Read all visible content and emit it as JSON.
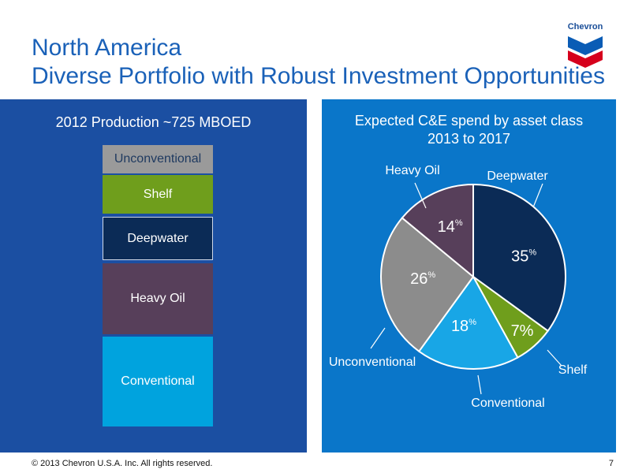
{
  "slide": {
    "title_line1": "North America",
    "title_line2": "Diverse Portfolio with Robust Investment Opportunities",
    "logo_text": "Chevron",
    "footer": "© 2013 Chevron U.S.A. Inc. All rights reserved.",
    "page_number": "7"
  },
  "colors": {
    "title": "#1a61b8",
    "left_panel": "#1b4fa2",
    "right_panel": "#0a76c9"
  },
  "chart_data": [
    {
      "type": "bar",
      "title": "2012 Production ~725 MBOED",
      "stacked": true,
      "categories": [
        "Unconventional",
        "Shelf",
        "Deepwater",
        "Heavy Oil",
        "Conventional"
      ],
      "colors": [
        "#9a9a9a",
        "#6f9e1c",
        "#0b2b56",
        "#573f5a",
        "#00a3de"
      ],
      "values_pct": [
        5,
        8,
        8,
        13,
        16
      ]
    },
    {
      "type": "pie",
      "title_line1": "Expected C&E spend by asset class",
      "title_line2": "2013 to 2017",
      "labels": [
        "Deepwater",
        "Shelf",
        "Conventional",
        "Unconventional",
        "Heavy Oil"
      ],
      "values": [
        35,
        7,
        18,
        26,
        14
      ],
      "value_labels": [
        "35",
        "7%",
        "18",
        "26",
        "14"
      ],
      "percent_sup": "%",
      "colors": [
        "#0b2b56",
        "#6f9e1c",
        "#18a6e6",
        "#8c8c8c",
        "#573f5a"
      ]
    }
  ]
}
